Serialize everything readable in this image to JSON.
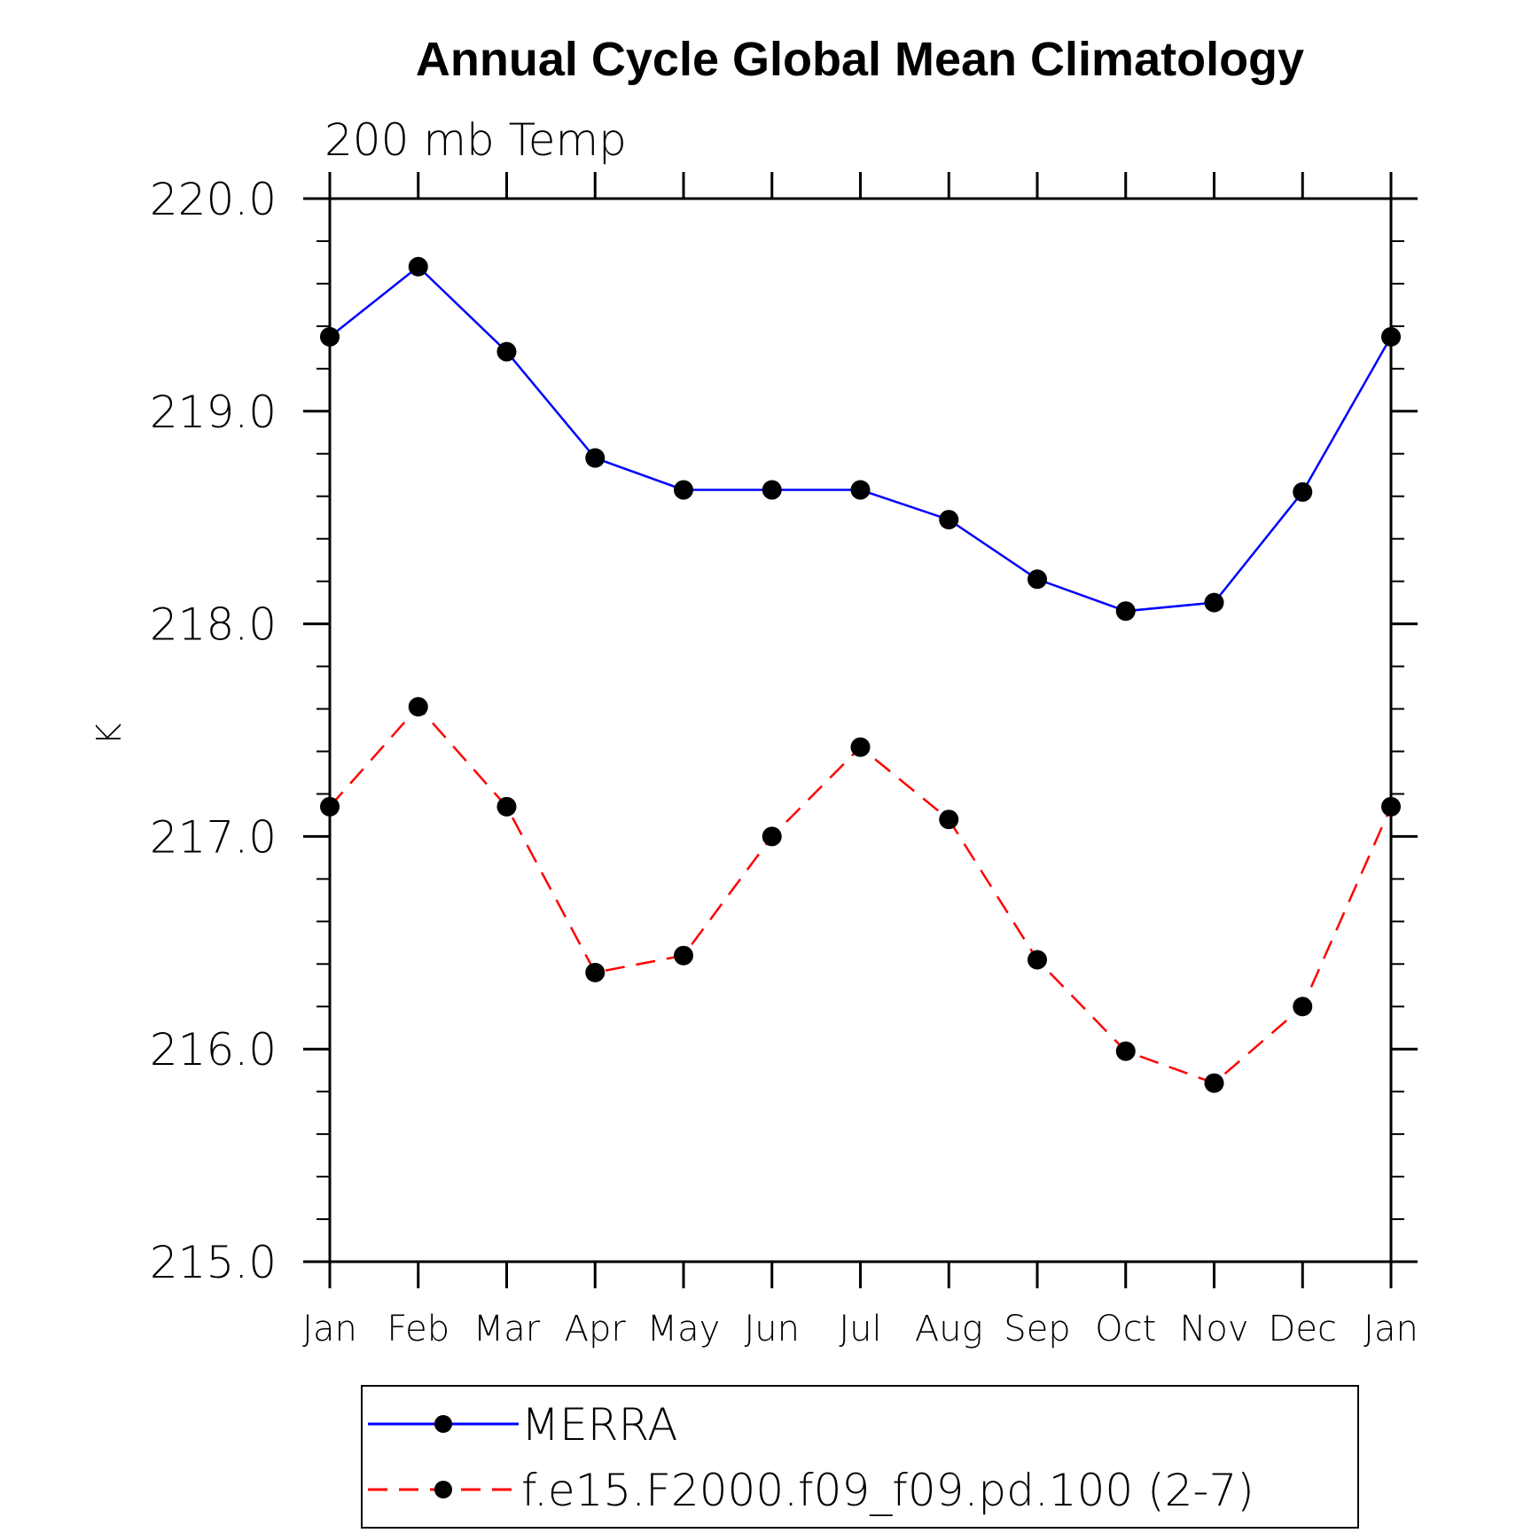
{
  "chart_data": {
    "type": "line",
    "title": "Annual Cycle Global Mean Climatology",
    "subtitle": "200 mb Temp",
    "xlabel": "",
    "ylabel": "K",
    "categories": [
      "Jan",
      "Feb",
      "Mar",
      "Apr",
      "May",
      "Jun",
      "Jul",
      "Aug",
      "Sep",
      "Oct",
      "Nov",
      "Dec",
      "Jan"
    ],
    "ylim": [
      215.0,
      220.0
    ],
    "yticks": [
      "215.0",
      "216.0",
      "217.0",
      "218.0",
      "219.0",
      "220.0"
    ],
    "grid": false,
    "legend_position": "bottom",
    "series": [
      {
        "name": "MERRA",
        "color": "#0000ff",
        "dash": "solid",
        "marker": "filled-circle",
        "values": [
          219.35,
          219.68,
          219.28,
          218.78,
          218.63,
          218.63,
          218.63,
          218.49,
          218.21,
          218.06,
          218.1,
          218.62,
          219.35
        ]
      },
      {
        "name": "f.e15.F2000.f09_f09.pd.100 (2-7)",
        "color": "#ff0000",
        "dash": "dashed",
        "marker": "filled-circle",
        "values": [
          217.14,
          217.61,
          217.14,
          216.36,
          216.44,
          217.0,
          217.42,
          217.08,
          216.42,
          215.99,
          215.84,
          216.2,
          217.14
        ]
      }
    ]
  }
}
